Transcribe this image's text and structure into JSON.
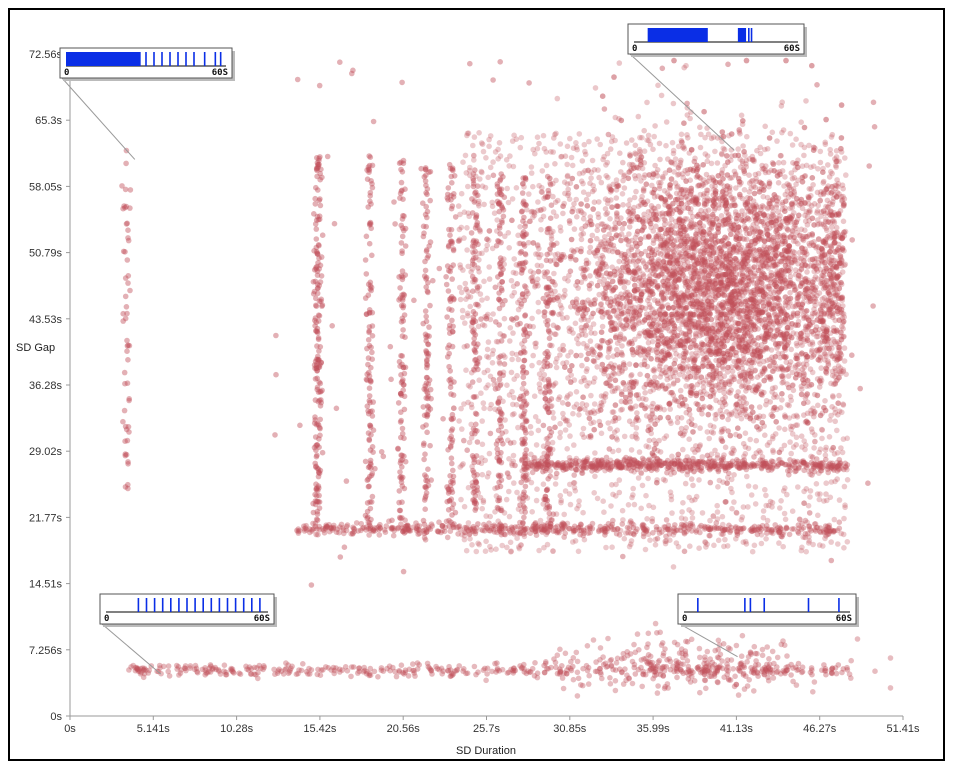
{
  "chart_data": {
    "type": "scatter",
    "xlabel": "SD Duration",
    "ylabel": "SD Gap",
    "xlim": [
      0,
      51.41
    ],
    "ylim": [
      0,
      72.56
    ],
    "x_ticks": [
      "0s",
      "5.141s",
      "10.28s",
      "15.42s",
      "20.56s",
      "25.7s",
      "30.85s",
      "35.99s",
      "41.13s",
      "46.27s",
      "51.41s"
    ],
    "y_ticks": [
      "0s",
      "7.256s",
      "14.51s",
      "21.77s",
      "29.02s",
      "36.28s",
      "43.53s",
      "50.79s",
      "58.05s",
      "65.3s",
      "72.56s"
    ],
    "point_color": "#c0505a",
    "grid": false,
    "legend": "none",
    "cluster": {
      "center": [
        40.0,
        46.5
      ],
      "spread": [
        4.8,
        7.5
      ]
    },
    "columns": [
      3.5,
      15.3,
      18.5,
      20.5,
      22.0,
      23.5,
      25.0,
      26.5,
      28.0,
      29.5
    ],
    "bands": [
      {
        "y": 20.5,
        "x_from": 14.0,
        "x_to": 47.5
      },
      {
        "y": 5.0,
        "x_from": 3.5,
        "x_to": 48.0
      },
      {
        "y": 27.5,
        "x_from": 28.0,
        "x_to": 48.0
      }
    ],
    "insets": [
      {
        "name": "inset-top-left",
        "anchor_point": [
          4.0,
          61.0
        ],
        "range_start_label": "0",
        "range_end_label": "60S",
        "range": [
          0,
          60
        ],
        "blocks": [
          [
            0,
            28
          ]
        ],
        "ticks": [
          30,
          33,
          36,
          39,
          42,
          45,
          48,
          52,
          56,
          58
        ]
      },
      {
        "name": "inset-top-right",
        "anchor_point": [
          41.0,
          62.0
        ],
        "range_start_label": "0",
        "range_end_label": "60S",
        "range": [
          0,
          60
        ],
        "blocks": [
          [
            5,
            27
          ],
          [
            38,
            41
          ]
        ],
        "ticks": [
          42,
          43
        ]
      },
      {
        "name": "inset-bottom-left",
        "anchor_point": [
          5.6,
          4.6
        ],
        "range_start_label": "0",
        "range_end_label": "60S",
        "range": [
          0,
          60
        ],
        "blocks": [],
        "ticks": [
          12,
          15,
          18,
          21,
          24,
          27,
          30,
          33,
          36,
          39,
          42,
          45,
          48,
          51,
          54,
          57
        ]
      },
      {
        "name": "inset-bottom-right",
        "anchor_point": [
          41.2,
          6.5
        ],
        "range_start_label": "0",
        "range_end_label": "60S",
        "range": [
          0,
          60
        ],
        "blocks": [],
        "ticks": [
          5,
          22,
          24,
          29,
          45,
          56
        ]
      }
    ]
  }
}
